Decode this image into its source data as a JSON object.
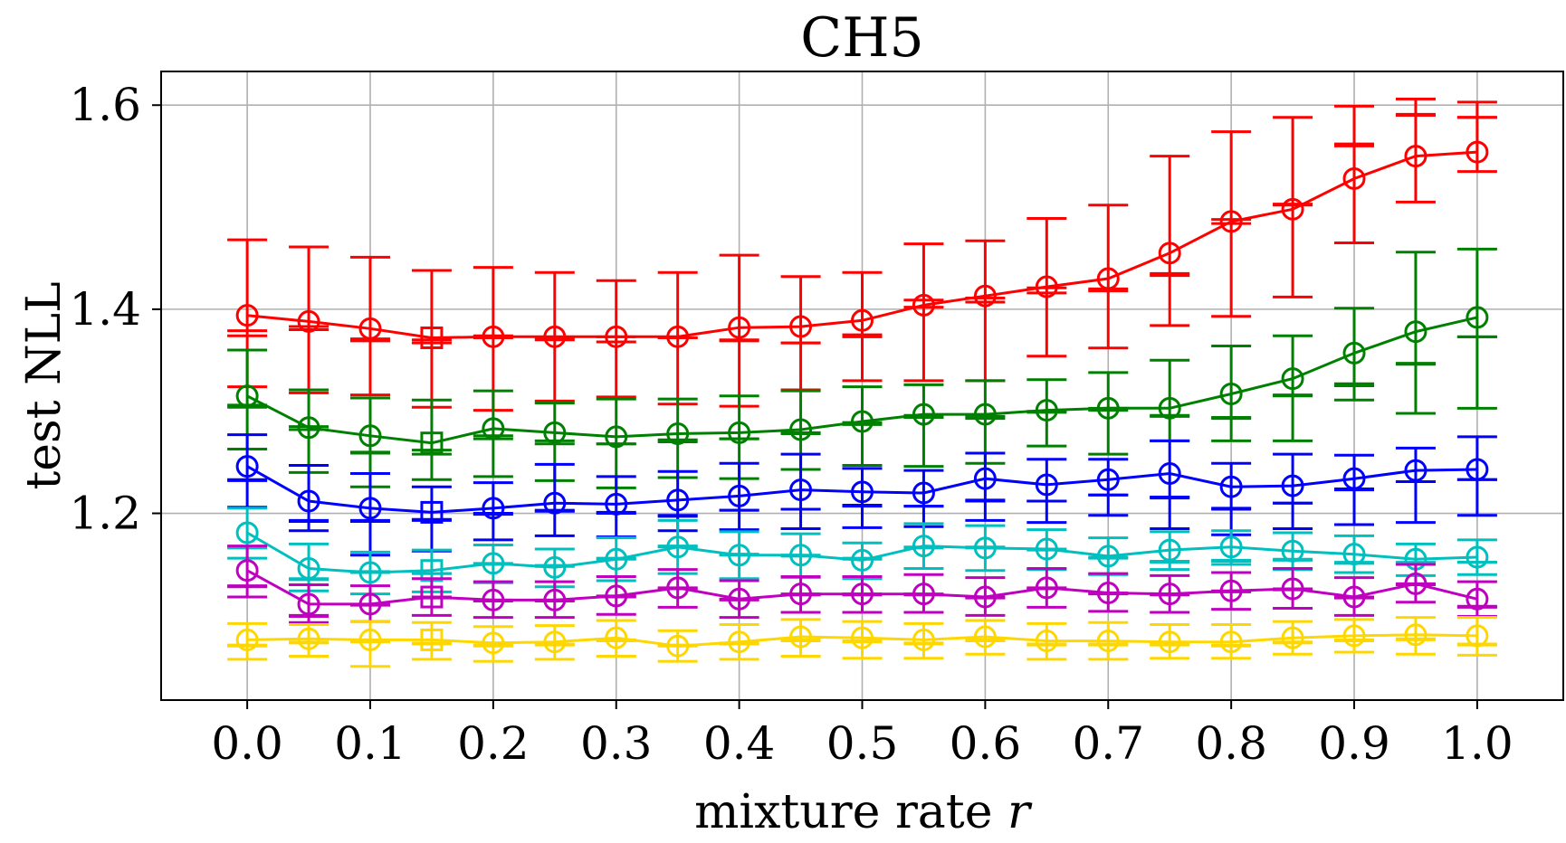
{
  "chart_data": {
    "type": "line",
    "title": "CH5",
    "xlabel": "mixture rate r",
    "ylabel": "test NLL",
    "xlim": [
      -0.07,
      1.07
    ],
    "ylim": [
      1.017,
      1.633
    ],
    "x": [
      0.0,
      0.05,
      0.1,
      0.15,
      0.2,
      0.25,
      0.3,
      0.35,
      0.4,
      0.45,
      0.5,
      0.55,
      0.6,
      0.65,
      0.7,
      0.75,
      0.8,
      0.85,
      0.9,
      0.95,
      1.0
    ],
    "x_ticks": [
      "0.0",
      "0.1",
      "0.2",
      "0.3",
      "0.4",
      "0.5",
      "0.6",
      "0.7",
      "0.8",
      "0.9",
      "1.0"
    ],
    "y_ticks": [
      "1.2",
      "1.4",
      "1.6"
    ],
    "grid": true,
    "square_marker_index": 3,
    "series": [
      {
        "color": "#ff0000",
        "values": [
          1.394,
          1.388,
          1.381,
          1.372,
          1.373,
          1.373,
          1.373,
          1.373,
          1.382,
          1.383,
          1.389,
          1.404,
          1.413,
          1.422,
          1.43,
          1.455,
          1.486,
          1.498,
          1.528,
          1.55,
          1.554
        ],
        "err_upper": [
          1.468,
          1.461,
          1.451,
          1.438,
          1.441,
          1.436,
          1.428,
          1.436,
          1.453,
          1.432,
          1.436,
          1.464,
          1.467,
          1.489,
          1.502,
          1.55,
          1.574,
          1.588,
          1.599,
          1.606,
          1.603
        ],
        "err_lower": [
          1.324,
          1.318,
          1.316,
          1.304,
          1.301,
          1.31,
          1.314,
          1.307,
          1.305,
          1.321,
          1.33,
          1.33,
          1.33,
          1.354,
          1.362,
          1.384,
          1.393,
          1.412,
          1.465,
          1.505,
          1.535
        ],
        "caps_upper": [
          1.374,
          1.383,
          1.369,
          1.367,
          1.372,
          1.37,
          1.368,
          1.372,
          1.369,
          1.367,
          1.373,
          1.402,
          1.407,
          1.416,
          1.42,
          1.433,
          1.484,
          1.503,
          1.562,
          1.591,
          1.588
        ],
        "caps_lower": [
          1.379,
          1.38,
          1.371,
          1.37,
          1.374,
          1.372,
          1.373,
          1.372,
          1.37,
          1.367,
          1.375,
          1.409,
          1.411,
          1.421,
          1.418,
          1.435,
          1.488,
          1.502,
          1.56,
          1.59,
          1.588
        ]
      },
      {
        "color": "#008000",
        "values": [
          1.315,
          1.284,
          1.276,
          1.269,
          1.283,
          1.279,
          1.275,
          1.278,
          1.279,
          1.282,
          1.29,
          1.297,
          1.297,
          1.301,
          1.303,
          1.303,
          1.317,
          1.332,
          1.357,
          1.378,
          1.392
        ],
        "err_upper": [
          1.36,
          1.321,
          1.313,
          1.311,
          1.32,
          1.308,
          1.312,
          1.312,
          1.315,
          1.32,
          1.324,
          1.326,
          1.33,
          1.331,
          1.338,
          1.35,
          1.364,
          1.374,
          1.401,
          1.456,
          1.459
        ],
        "err_lower": [
          1.263,
          1.24,
          1.226,
          1.233,
          1.236,
          1.232,
          1.225,
          1.235,
          1.234,
          1.243,
          1.247,
          1.246,
          1.249,
          1.266,
          1.258,
          1.271,
          1.271,
          1.271,
          1.311,
          1.298,
          1.303
        ],
        "caps_upper": [
          1.304,
          1.282,
          1.259,
          1.258,
          1.273,
          1.268,
          1.268,
          1.27,
          1.273,
          1.278,
          1.287,
          1.294,
          1.293,
          1.3,
          1.301,
          1.295,
          1.294,
          1.316,
          1.325,
          1.346,
          1.373
        ],
        "caps_lower": [
          1.306,
          1.285,
          1.26,
          1.262,
          1.276,
          1.271,
          1.268,
          1.272,
          1.273,
          1.279,
          1.289,
          1.296,
          1.295,
          1.299,
          1.303,
          1.296,
          1.293,
          1.315,
          1.327,
          1.347,
          1.373
        ]
      },
      {
        "color": "#0000ff",
        "values": [
          1.246,
          1.212,
          1.205,
          1.201,
          1.205,
          1.21,
          1.209,
          1.213,
          1.217,
          1.223,
          1.221,
          1.22,
          1.234,
          1.228,
          1.233,
          1.239,
          1.226,
          1.227,
          1.234,
          1.242,
          1.243
        ],
        "err_upper": [
          1.277,
          1.247,
          1.239,
          1.226,
          1.23,
          1.248,
          1.236,
          1.241,
          1.249,
          1.258,
          1.244,
          1.242,
          1.259,
          1.253,
          1.253,
          1.271,
          1.249,
          1.258,
          1.257,
          1.264,
          1.275
        ],
        "err_lower": [
          1.206,
          1.183,
          1.159,
          1.163,
          1.174,
          1.178,
          1.177,
          1.183,
          1.184,
          1.185,
          1.186,
          1.187,
          1.193,
          1.191,
          1.198,
          1.185,
          1.179,
          1.185,
          1.189,
          1.191,
          1.198
        ],
        "caps_upper": [
          1.232,
          1.192,
          1.192,
          1.194,
          1.199,
          1.203,
          1.2,
          1.197,
          1.203,
          1.204,
          1.207,
          1.207,
          1.212,
          1.212,
          1.218,
          1.215,
          1.204,
          1.21,
          1.224,
          1.231,
          1.233
        ],
        "caps_lower": [
          1.233,
          1.193,
          1.193,
          1.193,
          1.2,
          1.202,
          1.201,
          1.198,
          1.203,
          1.204,
          1.208,
          1.207,
          1.213,
          1.212,
          1.218,
          1.216,
          1.205,
          1.21,
          1.223,
          1.231,
          1.233
        ]
      },
      {
        "color": "#00bfbf",
        "values": [
          1.181,
          1.146,
          1.142,
          1.144,
          1.151,
          1.147,
          1.155,
          1.167,
          1.159,
          1.159,
          1.154,
          1.168,
          1.166,
          1.165,
          1.158,
          1.164,
          1.167,
          1.163,
          1.16,
          1.155,
          1.157
        ],
        "err_upper": [
          1.205,
          1.17,
          1.162,
          1.164,
          1.169,
          1.165,
          1.176,
          1.193,
          1.182,
          1.18,
          1.171,
          1.19,
          1.188,
          1.184,
          1.176,
          1.182,
          1.183,
          1.181,
          1.178,
          1.17,
          1.174
        ],
        "err_lower": [
          1.156,
          1.124,
          1.121,
          1.123,
          1.132,
          1.128,
          1.134,
          1.141,
          1.136,
          1.137,
          1.136,
          1.146,
          1.144,
          1.145,
          1.14,
          1.145,
          1.15,
          1.145,
          1.142,
          1.139,
          1.14
        ],
        "caps_upper": [
          1.166,
          1.135,
          1.143,
          1.141,
          1.151,
          1.148,
          1.155,
          1.168,
          1.16,
          1.158,
          1.156,
          1.166,
          1.166,
          1.164,
          1.156,
          1.152,
          1.154,
          1.154,
          1.151,
          1.151,
          1.152
        ],
        "caps_lower": [
          1.167,
          1.136,
          1.142,
          1.141,
          1.15,
          1.149,
          1.156,
          1.167,
          1.159,
          1.159,
          1.155,
          1.167,
          1.167,
          1.165,
          1.157,
          1.153,
          1.153,
          1.155,
          1.152,
          1.152,
          1.152
        ]
      },
      {
        "color": "#bf00bf",
        "values": [
          1.144,
          1.111,
          1.111,
          1.118,
          1.115,
          1.115,
          1.119,
          1.127,
          1.116,
          1.121,
          1.121,
          1.121,
          1.118,
          1.127,
          1.122,
          1.121,
          1.124,
          1.126,
          1.118,
          1.131,
          1.116
        ],
        "err_upper": [
          1.168,
          1.13,
          1.129,
          1.136,
          1.133,
          1.133,
          1.138,
          1.145,
          1.134,
          1.138,
          1.138,
          1.14,
          1.137,
          1.146,
          1.141,
          1.139,
          1.142,
          1.146,
          1.137,
          1.15,
          1.133
        ],
        "err_lower": [
          1.118,
          1.093,
          1.094,
          1.1,
          1.098,
          1.098,
          1.101,
          1.108,
          1.098,
          1.103,
          1.103,
          1.103,
          1.1,
          1.108,
          1.104,
          1.103,
          1.106,
          1.107,
          1.1,
          1.113,
          1.099
        ],
        "caps_upper": [
          1.128,
          1.099,
          1.111,
          1.118,
          1.115,
          1.115,
          1.119,
          1.127,
          1.116,
          1.121,
          1.121,
          1.121,
          1.118,
          1.127,
          1.122,
          1.121,
          1.124,
          1.126,
          1.118,
          1.131,
          1.108
        ],
        "caps_lower": [
          1.129,
          1.1,
          1.11,
          1.117,
          1.114,
          1.114,
          1.118,
          1.126,
          1.115,
          1.12,
          1.12,
          1.12,
          1.117,
          1.126,
          1.121,
          1.12,
          1.123,
          1.125,
          1.117,
          1.13,
          1.109
        ]
      },
      {
        "color": "#ffd700",
        "values": [
          1.076,
          1.077,
          1.076,
          1.076,
          1.073,
          1.074,
          1.078,
          1.07,
          1.074,
          1.079,
          1.078,
          1.076,
          1.079,
          1.075,
          1.075,
          1.074,
          1.074,
          1.078,
          1.08,
          1.081,
          1.08
        ],
        "err_upper": [
          1.092,
          1.091,
          1.094,
          1.093,
          1.089,
          1.09,
          1.095,
          1.085,
          1.091,
          1.096,
          1.094,
          1.092,
          1.095,
          1.092,
          1.093,
          1.091,
          1.091,
          1.094,
          1.096,
          1.098,
          1.098
        ],
        "err_lower": [
          1.057,
          1.06,
          1.05,
          1.057,
          1.055,
          1.057,
          1.06,
          1.055,
          1.057,
          1.06,
          1.058,
          1.058,
          1.062,
          1.057,
          1.057,
          1.058,
          1.058,
          1.062,
          1.064,
          1.062,
          1.061
        ],
        "caps_upper": [
          1.07,
          1.073,
          1.074,
          1.072,
          1.07,
          1.071,
          1.075,
          1.07,
          1.072,
          1.075,
          1.074,
          1.072,
          1.075,
          1.071,
          1.071,
          1.071,
          1.07,
          1.073,
          1.075,
          1.076,
          1.071
        ],
        "caps_lower": [
          1.071,
          1.074,
          1.075,
          1.073,
          1.071,
          1.072,
          1.076,
          1.071,
          1.073,
          1.076,
          1.075,
          1.073,
          1.076,
          1.072,
          1.072,
          1.072,
          1.071,
          1.074,
          1.076,
          1.077,
          1.072
        ]
      }
    ]
  }
}
